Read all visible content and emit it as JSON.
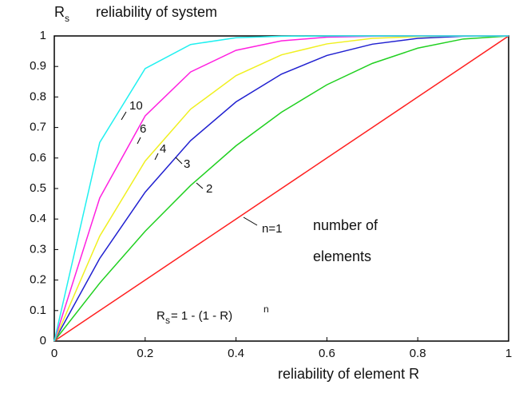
{
  "chart_data": {
    "type": "line",
    "y_label": {
      "symbol": "R",
      "subscript": "s",
      "text": "reliability of system"
    },
    "x_label": "reliability of element R",
    "x": [
      0,
      0.1,
      0.2,
      0.3,
      0.4,
      0.5,
      0.6,
      0.7,
      0.8,
      0.9,
      1
    ],
    "series": [
      {
        "name": "n=1",
        "color": "#ff2020",
        "values": [
          0,
          0.1,
          0.2,
          0.3,
          0.4,
          0.5,
          0.6,
          0.7,
          0.8,
          0.9,
          1
        ]
      },
      {
        "name": "2",
        "color": "#20d020",
        "values": [
          0,
          0.19,
          0.36,
          0.51,
          0.64,
          0.75,
          0.84,
          0.91,
          0.96,
          0.99,
          1
        ]
      },
      {
        "name": "3",
        "color": "#2020d0",
        "values": [
          0,
          0.271,
          0.488,
          0.657,
          0.784,
          0.875,
          0.936,
          0.973,
          0.992,
          0.999,
          1
        ]
      },
      {
        "name": "4",
        "color": "#f0f020",
        "values": [
          0,
          0.344,
          0.59,
          0.76,
          0.87,
          0.938,
          0.974,
          0.992,
          0.998,
          1,
          1
        ]
      },
      {
        "name": "6",
        "color": "#ff20e0",
        "values": [
          0,
          0.469,
          0.738,
          0.882,
          0.953,
          0.984,
          0.996,
          0.999,
          1,
          1,
          1
        ]
      },
      {
        "name": "10",
        "color": "#20f0f0",
        "values": [
          0,
          0.651,
          0.893,
          0.972,
          0.994,
          0.999,
          1,
          1,
          1,
          1,
          1
        ]
      }
    ],
    "annotations": [
      "number of",
      "elements"
    ],
    "formula": {
      "symbol": "R",
      "subscript": "s",
      "text": "= 1 - (1 - R)",
      "superscript": "n"
    },
    "xlim": [
      0,
      1
    ],
    "ylim": [
      0,
      1
    ],
    "xticks": [
      0,
      0.2,
      0.4,
      0.6,
      0.8,
      1
    ],
    "yticks": [
      0,
      0.1,
      0.2,
      0.3,
      0.4,
      0.5,
      0.6,
      0.7,
      0.8,
      0.9,
      1
    ],
    "grid": false
  }
}
